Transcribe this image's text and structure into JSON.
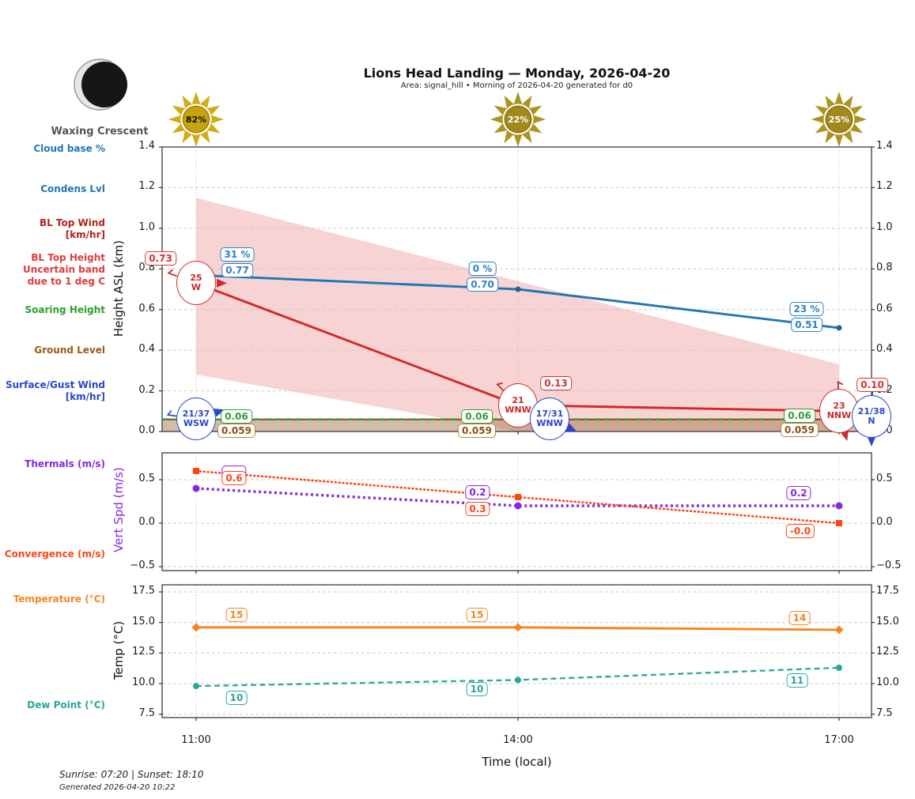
{
  "header": {
    "title": "Lions Head Landing — Monday, 2026-04-20",
    "subtitle": "Area: signal_hill • Morning of 2026-04-20 generated for d0",
    "moon_phase": "Waxing Crescent"
  },
  "sunshine_pct": [
    "82%",
    "22%",
    "25%"
  ],
  "x_axis": {
    "ticks": [
      "11:00",
      "14:00",
      "17:00"
    ],
    "label": "Time (local)"
  },
  "legend": {
    "cloud_base": {
      "text": "Cloud base %",
      "color": "#1f77b4"
    },
    "condens_lvl": {
      "text": "Condens Lvl",
      "color": "#1f77b4"
    },
    "bl_top_wind": {
      "lines": [
        "BL Top Wind",
        "[km/hr]"
      ],
      "color": "#b22222"
    },
    "bl_top_height": {
      "lines": [
        "BL Top Height",
        "Uncertain band",
        "due to 1 deg C"
      ],
      "color": "#e03c3c"
    },
    "soaring_height": {
      "text": "Soaring Height",
      "color": "#2e9e2e"
    },
    "ground_level": {
      "text": "Ground Level",
      "color": "#995c1a"
    },
    "surface_wind": {
      "lines": [
        "Surface/Gust Wind",
        "[km/hr]"
      ],
      "color": "#2b47cc"
    },
    "thermals": {
      "text": "Thermals (m/s)",
      "color": "#8428e2"
    },
    "convergence": {
      "text": "Convergence (m/s)",
      "color": "#ff4514"
    },
    "temperature": {
      "text": "Temperature (°C)",
      "color": "#f5861f"
    },
    "dew_point": {
      "text": "Dew Point (°C)",
      "color": "#2aa79b"
    }
  },
  "chart_data": [
    {
      "type": "line",
      "ylabel": "Height ASL (km)",
      "ylim": [
        0,
        1.4
      ],
      "yticks": [
        "0.0",
        "0.2",
        "0.4",
        "0.6",
        "0.8",
        "1.0",
        "1.2",
        "1.4"
      ],
      "x": [
        "11:00",
        "14:00",
        "17:00"
      ],
      "series": [
        {
          "name": "Condens Lvl",
          "color": "#1f77b4",
          "values": [
            0.77,
            0.7,
            0.51
          ],
          "labels": [
            "0.77",
            "0.70",
            "0.51"
          ]
        },
        {
          "name": "BL Top Height",
          "color": "#d62728",
          "values": [
            0.73,
            0.13,
            0.1
          ],
          "labels": [
            "0.73",
            "0.13",
            "0.10"
          ]
        },
        {
          "name": "Soaring Height",
          "color": "#2ca02c",
          "values": [
            0.06,
            0.06,
            0.06
          ],
          "labels": [
            "0.06",
            "0.06",
            "0.06"
          ]
        },
        {
          "name": "Ground Level",
          "color": "#993b22",
          "values": [
            0.059,
            0.059,
            0.059
          ],
          "labels": [
            "0.059",
            "0.059",
            "0.059"
          ]
        }
      ],
      "cloud_base_pct": [
        "31 %",
        "0 %",
        "23 %"
      ],
      "uncertainty_band": {
        "name": "BL Top Height uncertain band due to 1 deg C",
        "color": "#f7d3d3",
        "top": [
          1.15,
          0.74,
          0.33
        ],
        "bottom": [
          0.28,
          0.0,
          0.0
        ]
      },
      "bl_top_wind": [
        {
          "speed": "25",
          "dir": "W"
        },
        {
          "speed": "21",
          "dir": "WNW"
        },
        {
          "speed": "23",
          "dir": "NNW"
        }
      ],
      "surface_gust_wind": [
        {
          "speed": "21/37",
          "dir": "WSW"
        },
        {
          "speed": "17/31",
          "dir": "WNW"
        },
        {
          "speed": "21/38",
          "dir": "N"
        }
      ]
    },
    {
      "type": "line",
      "ylabel": "Vert Spd (m/s)",
      "ylabel_color": "#8428e2",
      "ylim": [
        -0.55,
        0.81
      ],
      "yticks": [
        "0.5",
        "0.0",
        "−0.5"
      ],
      "x": [
        "11:00",
        "14:00",
        "17:00"
      ],
      "series": [
        {
          "name": "Thermals (m/s)",
          "color": "#8428e2",
          "values": [
            0.4,
            0.2,
            0.2
          ],
          "labels": [
            "0.4",
            "0.2",
            "0.2"
          ]
        },
        {
          "name": "Convergence (m/s)",
          "color": "#ff4514",
          "values": [
            0.6,
            0.3,
            -0.0
          ],
          "labels": [
            "0.6",
            "0.3",
            "-0.0"
          ]
        }
      ]
    },
    {
      "type": "line",
      "ylabel": "Temp (°C)",
      "ylim": [
        7.1,
        18.2
      ],
      "yticks": [
        "7.5",
        "10.0",
        "12.5",
        "15.0",
        "17.5"
      ],
      "x": [
        "11:00",
        "14:00",
        "17:00"
      ],
      "series": [
        {
          "name": "Temperature (°C)",
          "color": "#f5861f",
          "values": [
            14.6,
            14.6,
            14.4
          ],
          "labels": [
            "15",
            "15",
            "14"
          ]
        },
        {
          "name": "Dew Point (°C)",
          "color": "#2aa79b",
          "values": [
            9.8,
            10.3,
            11.3
          ],
          "labels": [
            "10",
            "10",
            "11"
          ]
        }
      ]
    }
  ],
  "footer": {
    "sun_times": "Sunrise: 07:20 | Sunset: 18:10",
    "generated": "Generated 2026-04-20 10:22"
  }
}
